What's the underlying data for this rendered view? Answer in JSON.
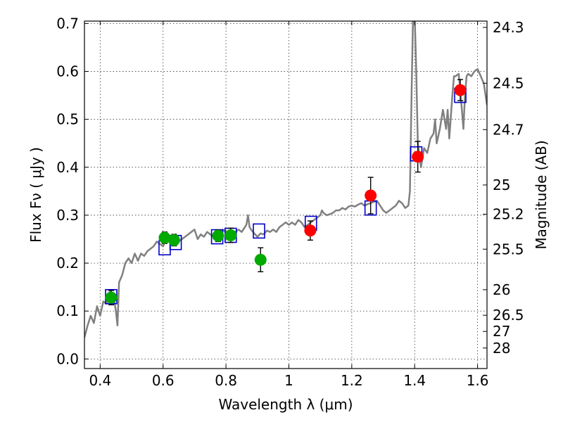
{
  "chart_data": {
    "type": "scatter",
    "title": "",
    "xlabel": "Wavelength  λ (μm)",
    "ylabel": "Flux  Fν  ( μJy )",
    "y2label": "Magnitude (AB)",
    "xlim": [
      0.35,
      1.63
    ],
    "ylim": [
      -0.02,
      0.705
    ],
    "grid": true,
    "x_ticks": [
      0.4,
      0.6,
      0.8,
      1.0,
      1.2,
      1.4,
      1.6
    ],
    "x_tick_labels": [
      "0.4",
      "0.6",
      "0.8",
      "1",
      "1.2",
      "1.4",
      "1.6"
    ],
    "y_ticks": [
      0.0,
      0.1,
      0.2,
      0.3,
      0.4,
      0.5,
      0.6,
      0.7
    ],
    "y_tick_labels": [
      "0.0",
      "0.1",
      "0.2",
      "0.3",
      "0.4",
      "0.5",
      "0.6",
      "0.7"
    ],
    "mag_ticks": [
      {
        "label": "24.3",
        "flux": 0.6918
      },
      {
        "label": "24.5",
        "flux": 0.5754
      },
      {
        "label": "24.7",
        "flux": 0.4786
      },
      {
        "label": "25",
        "flux": 0.3631
      },
      {
        "label": "25.2",
        "flux": 0.302
      },
      {
        "label": "25.5",
        "flux": 0.2291
      },
      {
        "label": "26",
        "flux": 0.1445
      },
      {
        "label": "26.5",
        "flux": 0.0912
      },
      {
        "label": "27",
        "flux": 0.0575
      },
      {
        "label": "28",
        "flux": 0.0229
      }
    ],
    "series": [
      {
        "kind": "line",
        "color": "#808080",
        "points": [
          [
            0.35,
            0.045
          ],
          [
            0.36,
            0.07
          ],
          [
            0.37,
            0.09
          ],
          [
            0.38,
            0.075
          ],
          [
            0.39,
            0.11
          ],
          [
            0.4,
            0.09
          ],
          [
            0.41,
            0.12
          ],
          [
            0.42,
            0.115
          ],
          [
            0.43,
            0.14
          ],
          [
            0.44,
            0.13
          ],
          [
            0.445,
            0.12
          ],
          [
            0.45,
            0.1
          ],
          [
            0.455,
            0.07
          ],
          [
            0.46,
            0.16
          ],
          [
            0.47,
            0.175
          ],
          [
            0.48,
            0.2
          ],
          [
            0.49,
            0.21
          ],
          [
            0.5,
            0.2
          ],
          [
            0.51,
            0.22
          ],
          [
            0.52,
            0.205
          ],
          [
            0.53,
            0.22
          ],
          [
            0.54,
            0.215
          ],
          [
            0.55,
            0.225
          ],
          [
            0.56,
            0.23
          ],
          [
            0.57,
            0.235
          ],
          [
            0.58,
            0.245
          ],
          [
            0.59,
            0.24
          ],
          [
            0.6,
            0.235
          ],
          [
            0.61,
            0.25
          ],
          [
            0.62,
            0.245
          ],
          [
            0.63,
            0.255
          ],
          [
            0.64,
            0.26
          ],
          [
            0.65,
            0.245
          ],
          [
            0.66,
            0.25
          ],
          [
            0.67,
            0.255
          ],
          [
            0.68,
            0.26
          ],
          [
            0.69,
            0.265
          ],
          [
            0.7,
            0.27
          ],
          [
            0.71,
            0.25
          ],
          [
            0.72,
            0.26
          ],
          [
            0.73,
            0.255
          ],
          [
            0.74,
            0.265
          ],
          [
            0.75,
            0.26
          ],
          [
            0.76,
            0.255
          ],
          [
            0.77,
            0.265
          ],
          [
            0.78,
            0.26
          ],
          [
            0.79,
            0.27
          ],
          [
            0.8,
            0.265
          ],
          [
            0.81,
            0.26
          ],
          [
            0.82,
            0.268
          ],
          [
            0.83,
            0.265
          ],
          [
            0.84,
            0.27
          ],
          [
            0.85,
            0.265
          ],
          [
            0.86,
            0.275
          ],
          [
            0.865,
            0.28
          ],
          [
            0.87,
            0.3
          ],
          [
            0.875,
            0.275
          ],
          [
            0.88,
            0.27
          ],
          [
            0.89,
            0.262
          ],
          [
            0.9,
            0.255
          ],
          [
            0.91,
            0.262
          ],
          [
            0.92,
            0.26
          ],
          [
            0.93,
            0.268
          ],
          [
            0.94,
            0.265
          ],
          [
            0.95,
            0.27
          ],
          [
            0.96,
            0.265
          ],
          [
            0.97,
            0.275
          ],
          [
            0.98,
            0.28
          ],
          [
            0.99,
            0.285
          ],
          [
            1.0,
            0.28
          ],
          [
            1.01,
            0.285
          ],
          [
            1.02,
            0.28
          ],
          [
            1.03,
            0.29
          ],
          [
            1.04,
            0.285
          ],
          [
            1.05,
            0.275
          ],
          [
            1.06,
            0.28
          ],
          [
            1.07,
            0.285
          ],
          [
            1.08,
            0.29
          ],
          [
            1.09,
            0.295
          ],
          [
            1.1,
            0.3
          ],
          [
            1.105,
            0.31
          ],
          [
            1.11,
            0.305
          ],
          [
            1.12,
            0.3
          ],
          [
            1.13,
            0.302
          ],
          [
            1.14,
            0.305
          ],
          [
            1.15,
            0.31
          ],
          [
            1.16,
            0.31
          ],
          [
            1.17,
            0.315
          ],
          [
            1.18,
            0.312
          ],
          [
            1.19,
            0.318
          ],
          [
            1.2,
            0.32
          ],
          [
            1.21,
            0.318
          ],
          [
            1.22,
            0.322
          ],
          [
            1.23,
            0.325
          ],
          [
            1.24,
            0.32
          ],
          [
            1.25,
            0.323
          ],
          [
            1.26,
            0.325
          ],
          [
            1.27,
            0.328
          ],
          [
            1.28,
            0.33
          ],
          [
            1.29,
            0.32
          ],
          [
            1.3,
            0.31
          ],
          [
            1.31,
            0.305
          ],
          [
            1.32,
            0.31
          ],
          [
            1.33,
            0.315
          ],
          [
            1.34,
            0.32
          ],
          [
            1.35,
            0.33
          ],
          [
            1.36,
            0.325
          ],
          [
            1.37,
            0.315
          ],
          [
            1.38,
            0.32
          ],
          [
            1.385,
            0.35
          ],
          [
            1.39,
            0.55
          ],
          [
            1.395,
            0.72
          ],
          [
            1.4,
            0.72
          ],
          [
            1.405,
            0.6
          ],
          [
            1.41,
            0.45
          ],
          [
            1.42,
            0.4
          ],
          [
            1.43,
            0.44
          ],
          [
            1.44,
            0.43
          ],
          [
            1.45,
            0.46
          ],
          [
            1.46,
            0.47
          ],
          [
            1.465,
            0.5
          ],
          [
            1.47,
            0.45
          ],
          [
            1.48,
            0.48
          ],
          [
            1.49,
            0.52
          ],
          [
            1.5,
            0.48
          ],
          [
            1.505,
            0.52
          ],
          [
            1.51,
            0.46
          ],
          [
            1.52,
            0.55
          ],
          [
            1.525,
            0.59
          ],
          [
            1.53,
            0.59
          ],
          [
            1.54,
            0.595
          ],
          [
            1.545,
            0.56
          ],
          [
            1.55,
            0.52
          ],
          [
            1.555,
            0.48
          ],
          [
            1.56,
            0.55
          ],
          [
            1.565,
            0.59
          ],
          [
            1.57,
            0.595
          ],
          [
            1.58,
            0.59
          ],
          [
            1.59,
            0.6
          ],
          [
            1.6,
            0.605
          ],
          [
            1.61,
            0.59
          ],
          [
            1.62,
            0.575
          ],
          [
            1.63,
            0.53
          ]
        ]
      },
      {
        "kind": "boxes",
        "color": "#0000cc",
        "points": [
          [
            0.435,
            0.13
          ],
          [
            0.605,
            0.232
          ],
          [
            0.64,
            0.243
          ],
          [
            0.772,
            0.255
          ],
          [
            0.815,
            0.258
          ],
          [
            0.905,
            0.267
          ],
          [
            1.07,
            0.283
          ],
          [
            1.26,
            0.315
          ],
          [
            1.405,
            0.428
          ],
          [
            1.545,
            0.55
          ]
        ]
      },
      {
        "kind": "points",
        "color": "#00aa00",
        "points": [
          {
            "x": 0.435,
            "y": 0.128,
            "err": 0.015
          },
          {
            "x": 0.605,
            "y": 0.253,
            "err": 0.012
          },
          {
            "x": 0.635,
            "y": 0.248,
            "err": 0.012
          },
          {
            "x": 0.775,
            "y": 0.257,
            "err": 0.012
          },
          {
            "x": 0.815,
            "y": 0.258,
            "err": 0.015
          },
          {
            "x": 0.91,
            "y": 0.207,
            "err": 0.025
          }
        ]
      },
      {
        "kind": "points",
        "color": "#ff0000",
        "points": [
          {
            "x": 1.068,
            "y": 0.268,
            "err": 0.02
          },
          {
            "x": 1.26,
            "y": 0.341,
            "err": 0.038
          },
          {
            "x": 1.41,
            "y": 0.422,
            "err": 0.032
          },
          {
            "x": 1.545,
            "y": 0.561,
            "err": 0.022
          }
        ]
      }
    ]
  }
}
